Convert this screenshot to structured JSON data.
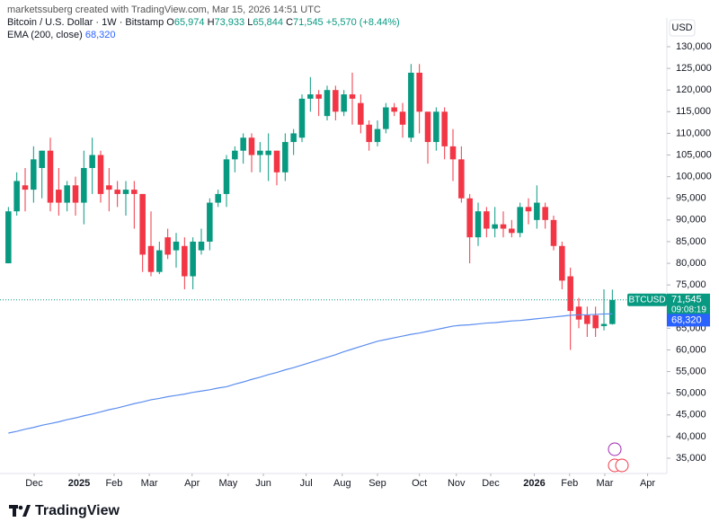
{
  "header": {
    "credit": "marketssuberg created with TradingView.com, Mar 15, 2026 14:51 UTC",
    "symbol": "Bitcoin / U.S. Dollar · 1W · Bitstamp",
    "open_label": "O",
    "open": "65,974",
    "high_label": "H",
    "high": "73,933",
    "low_label": "L",
    "low": "65,844",
    "close_label": "C",
    "close": "71,545",
    "change": "+5,570 (+8.44%)"
  },
  "logo": "TradingView",
  "chart_data": {
    "type": "candlestick",
    "currency": "USD",
    "up_color": "#089981",
    "down_color": "#f23645",
    "open": [
      80000,
      92000,
      98000,
      97000,
      102000,
      106000,
      97000,
      94000,
      98000,
      94000,
      102000,
      105000,
      98000,
      97000,
      96000,
      97000,
      96000,
      84000,
      78000,
      86000,
      83000,
      84000,
      77000,
      83000,
      85000,
      94000,
      96000,
      104000,
      106000,
      109000,
      105000,
      105000,
      106000,
      101000,
      108000,
      109000,
      118000,
      119000,
      114000,
      120000,
      115000,
      119000,
      117000,
      112000,
      108000,
      111000,
      116000,
      115000,
      109000,
      124000,
      115000,
      108000,
      115000,
      107000,
      104000,
      95000,
      86000,
      92000,
      88000,
      89000,
      88000,
      87000,
      93000,
      90000,
      93000,
      90000,
      84000,
      77000,
      70000,
      68000,
      68000,
      65500,
      65974
    ],
    "high": [
      93000,
      101000,
      102000,
      107000,
      106000,
      109000,
      102000,
      99000,
      100000,
      106000,
      109000,
      106000,
      102000,
      99000,
      99000,
      99000,
      96000,
      92000,
      85000,
      88000,
      87000,
      86000,
      86000,
      88000,
      95000,
      97000,
      105000,
      107000,
      110000,
      110000,
      108000,
      110000,
      106000,
      110000,
      111000,
      119000,
      123000,
      120000,
      121000,
      121000,
      120000,
      124000,
      119000,
      113000,
      113000,
      117000,
      117000,
      117000,
      126000,
      126000,
      115000,
      116000,
      116000,
      111000,
      107000,
      96000,
      94000,
      93000,
      93000,
      92000,
      90000,
      94000,
      95000,
      98000,
      94000,
      91000,
      85000,
      79000,
      72000,
      70000,
      70000,
      74000,
      73933
    ],
    "low": [
      80000,
      91000,
      92000,
      94000,
      95000,
      92000,
      91000,
      92000,
      91000,
      89000,
      96000,
      94000,
      92000,
      93000,
      91000,
      88000,
      78000,
      77000,
      77500,
      81000,
      79000,
      74000,
      74000,
      82000,
      83000,
      93000,
      93000,
      101000,
      103000,
      101000,
      101000,
      99000,
      98000,
      99000,
      105000,
      108000,
      115000,
      114000,
      113000,
      113000,
      114000,
      112000,
      110000,
      106000,
      107000,
      110000,
      114000,
      109000,
      108000,
      110000,
      103000,
      106000,
      104000,
      99000,
      94000,
      80000,
      84000,
      86000,
      86000,
      86000,
      86000,
      86000,
      89000,
      88000,
      88000,
      83000,
      74000,
      60000,
      65000,
      63000,
      63000,
      64500,
      65844
    ],
    "close": [
      92000,
      99000,
      97000,
      104000,
      106000,
      94000,
      94000,
      98000,
      94000,
      102000,
      105000,
      96000,
      97000,
      96000,
      97000,
      96000,
      82000,
      78000,
      83000,
      82000,
      85000,
      77000,
      85000,
      85000,
      94000,
      96000,
      104000,
      106000,
      109000,
      105000,
      106000,
      106000,
      101000,
      108000,
      110000,
      118000,
      119000,
      118000,
      120000,
      115000,
      119000,
      118000,
      112000,
      108000,
      111000,
      116000,
      115000,
      112000,
      124000,
      115000,
      108000,
      115000,
      107000,
      104000,
      95000,
      86000,
      92000,
      88000,
      89000,
      88000,
      87000,
      93000,
      92000,
      94000,
      90000,
      84000,
      76000,
      69000,
      67000,
      66000,
      65000,
      66000,
      71545
    ],
    "series": [
      {
        "name": "EMA (200, close)",
        "color": "#5b8def",
        "value_label": "68,320",
        "values": [
          40800,
          41200,
          41700,
          42100,
          42600,
          43000,
          43400,
          43900,
          44300,
          44800,
          45200,
          45700,
          46200,
          46600,
          47100,
          47600,
          48000,
          48500,
          48800,
          49200,
          49500,
          49800,
          50200,
          50500,
          50800,
          51200,
          51500,
          52100,
          52600,
          53200,
          53700,
          54300,
          54800,
          55400,
          55900,
          56500,
          57100,
          57700,
          58300,
          58900,
          59600,
          60200,
          60800,
          61400,
          62000,
          62400,
          62800,
          63200,
          63600,
          63900,
          64300,
          64700,
          65100,
          65500,
          65700,
          65800,
          66000,
          66200,
          66300,
          66500,
          66700,
          66800,
          67000,
          67200,
          67400,
          67600,
          67800,
          68000,
          68100,
          68100,
          68200,
          68300,
          68320
        ]
      }
    ],
    "last_price": {
      "symbol": "BTCUSD",
      "value": 71545,
      "label": "71,545",
      "countdown": "09:08:19"
    },
    "xlim": [
      -1,
      78.5
    ],
    "xticks": [
      {
        "value": 3.07,
        "label": "Dec"
      },
      {
        "value": 8.43,
        "label": "2025"
      },
      {
        "value": 12.6,
        "label": "Feb"
      },
      {
        "value": 16.8,
        "label": "Mar"
      },
      {
        "value": 21.9,
        "label": "Apr"
      },
      {
        "value": 26.2,
        "label": "May"
      },
      {
        "value": 30.4,
        "label": "Jun"
      },
      {
        "value": 35.5,
        "label": "Jul"
      },
      {
        "value": 39.8,
        "label": "Aug"
      },
      {
        "value": 44.0,
        "label": "Sep"
      },
      {
        "value": 49.0,
        "label": "Oct"
      },
      {
        "value": 53.4,
        "label": "Nov"
      },
      {
        "value": 57.5,
        "label": "Dec"
      },
      {
        "value": 62.7,
        "label": "2026"
      },
      {
        "value": 66.9,
        "label": "Feb"
      },
      {
        "value": 71.1,
        "label": "Mar"
      },
      {
        "value": 76.2,
        "label": "Apr"
      }
    ],
    "ylim": [
      31470,
      136640
    ],
    "yticks": [
      {
        "value": 35000,
        "label": "35,000"
      },
      {
        "value": 40000,
        "label": "40,000"
      },
      {
        "value": 45000,
        "label": "45,000"
      },
      {
        "value": 50000,
        "label": "50,000"
      },
      {
        "value": 55000,
        "label": "55,000"
      },
      {
        "value": 60000,
        "label": "60,000"
      },
      {
        "value": 65000,
        "label": "65,000"
      },
      {
        "value": 75000,
        "label": "75,000"
      },
      {
        "value": 80000,
        "label": "80,000"
      },
      {
        "value": 85000,
        "label": "85,000"
      },
      {
        "value": 90000,
        "label": "90,000"
      },
      {
        "value": 95000,
        "label": "95,000"
      },
      {
        "value": 100000,
        "label": "100,000"
      },
      {
        "value": 105000,
        "label": "105,000"
      },
      {
        "value": 110000,
        "label": "110,000"
      },
      {
        "value": 115000,
        "label": "115,000"
      },
      {
        "value": 120000,
        "label": "120,000"
      },
      {
        "value": 125000,
        "label": "125,000"
      },
      {
        "value": 130000,
        "label": "130,000"
      }
    ],
    "grid": false
  }
}
